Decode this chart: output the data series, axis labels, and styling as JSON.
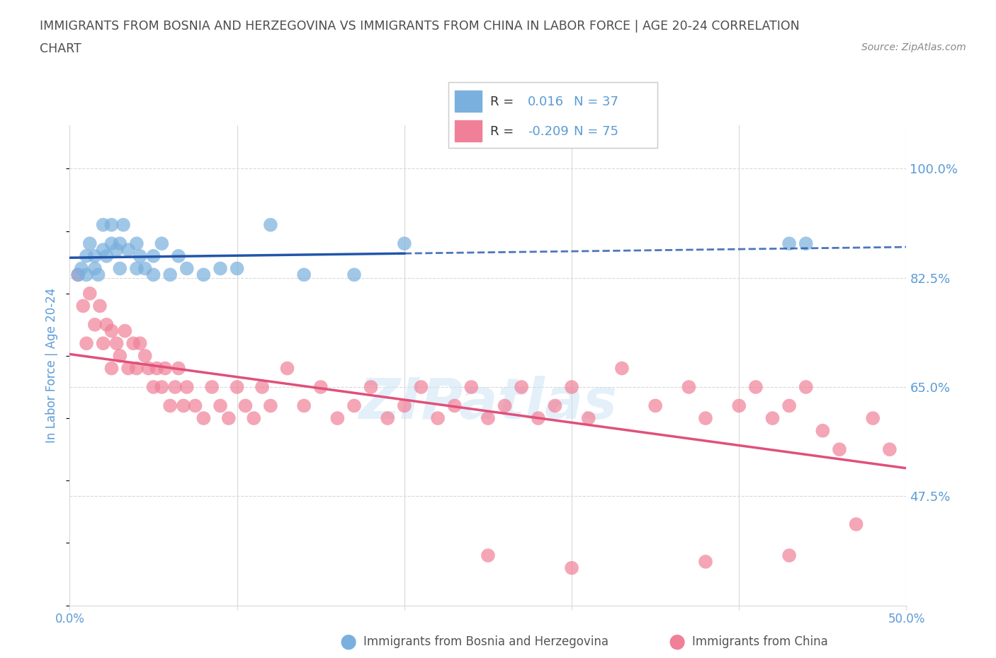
{
  "title_line1": "IMMIGRANTS FROM BOSNIA AND HERZEGOVINA VS IMMIGRANTS FROM CHINA IN LABOR FORCE | AGE 20-24 CORRELATION",
  "title_line2": "CHART",
  "source": "Source: ZipAtlas.com",
  "ylabel": "In Labor Force | Age 20-24",
  "xlim": [
    0.0,
    0.5
  ],
  "ylim": [
    0.3,
    1.07
  ],
  "yticks": [
    0.475,
    0.65,
    0.825,
    1.0
  ],
  "ytick_labels": [
    "47.5%",
    "65.0%",
    "82.5%",
    "100.0%"
  ],
  "xticks": [
    0.0,
    0.1,
    0.2,
    0.3,
    0.4,
    0.5
  ],
  "xtick_labels": [
    "0.0%",
    "",
    "",
    "",
    "",
    "50.0%"
  ],
  "title_color": "#4d4d4d",
  "axis_color": "#5b9bd5",
  "label_color": "#5b9bd5",
  "watermark": "ZIPatlas",
  "bosnia_color": "#7ab0de",
  "china_color": "#f08098",
  "bosnia_trend_color": "#2255aa",
  "china_trend_color": "#e0507a",
  "grid_color": "#d8d8d8",
  "background_color": "#ffffff",
  "legend_bosnia_R": "0.016",
  "legend_bosnia_N": "37",
  "legend_china_R": "-0.209",
  "legend_china_N": "75",
  "bosnia_x": [
    0.005,
    0.007,
    0.01,
    0.01,
    0.012,
    0.015,
    0.015,
    0.017,
    0.02,
    0.02,
    0.022,
    0.025,
    0.025,
    0.028,
    0.03,
    0.03,
    0.032,
    0.035,
    0.04,
    0.04,
    0.042,
    0.045,
    0.05,
    0.05,
    0.055,
    0.06,
    0.065,
    0.07,
    0.08,
    0.09,
    0.1,
    0.12,
    0.14,
    0.17,
    0.2,
    0.43,
    0.44
  ],
  "bosnia_y": [
    0.83,
    0.84,
    0.83,
    0.86,
    0.88,
    0.84,
    0.86,
    0.83,
    0.87,
    0.91,
    0.86,
    0.88,
    0.91,
    0.87,
    0.84,
    0.88,
    0.91,
    0.87,
    0.84,
    0.88,
    0.86,
    0.84,
    0.83,
    0.86,
    0.88,
    0.83,
    0.86,
    0.84,
    0.83,
    0.84,
    0.84,
    0.91,
    0.83,
    0.83,
    0.88,
    0.88,
    0.88
  ],
  "china_x": [
    0.005,
    0.008,
    0.01,
    0.012,
    0.015,
    0.018,
    0.02,
    0.022,
    0.025,
    0.025,
    0.028,
    0.03,
    0.033,
    0.035,
    0.038,
    0.04,
    0.042,
    0.045,
    0.047,
    0.05,
    0.052,
    0.055,
    0.057,
    0.06,
    0.063,
    0.065,
    0.068,
    0.07,
    0.075,
    0.08,
    0.085,
    0.09,
    0.095,
    0.1,
    0.105,
    0.11,
    0.115,
    0.12,
    0.13,
    0.14,
    0.15,
    0.16,
    0.17,
    0.18,
    0.19,
    0.2,
    0.21,
    0.22,
    0.23,
    0.24,
    0.25,
    0.26,
    0.27,
    0.28,
    0.29,
    0.3,
    0.31,
    0.33,
    0.35,
    0.37,
    0.38,
    0.4,
    0.41,
    0.42,
    0.43,
    0.44,
    0.45,
    0.46,
    0.48,
    0.49,
    0.25,
    0.3,
    0.38,
    0.43,
    0.47
  ],
  "china_y": [
    0.83,
    0.78,
    0.72,
    0.8,
    0.75,
    0.78,
    0.72,
    0.75,
    0.68,
    0.74,
    0.72,
    0.7,
    0.74,
    0.68,
    0.72,
    0.68,
    0.72,
    0.7,
    0.68,
    0.65,
    0.68,
    0.65,
    0.68,
    0.62,
    0.65,
    0.68,
    0.62,
    0.65,
    0.62,
    0.6,
    0.65,
    0.62,
    0.6,
    0.65,
    0.62,
    0.6,
    0.65,
    0.62,
    0.68,
    0.62,
    0.65,
    0.6,
    0.62,
    0.65,
    0.6,
    0.62,
    0.65,
    0.6,
    0.62,
    0.65,
    0.6,
    0.62,
    0.65,
    0.6,
    0.62,
    0.65,
    0.6,
    0.68,
    0.62,
    0.65,
    0.6,
    0.62,
    0.65,
    0.6,
    0.62,
    0.65,
    0.58,
    0.55,
    0.6,
    0.55,
    0.38,
    0.36,
    0.37,
    0.38,
    0.43
  ]
}
